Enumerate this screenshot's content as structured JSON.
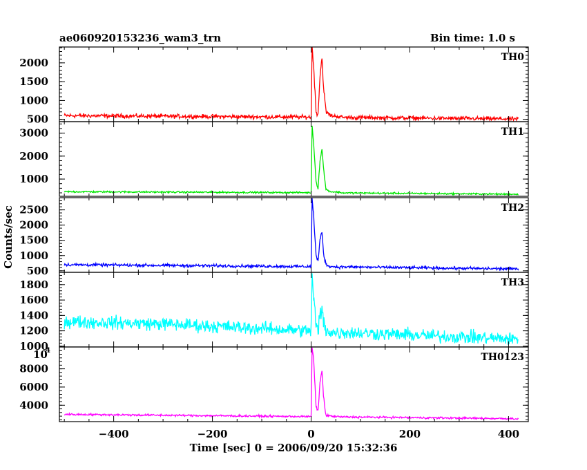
{
  "chart_data": {
    "type": "line",
    "title_left": "ae060920153236_wam3_trn",
    "title_right": "Bin time: 1.0 s",
    "xlabel": "Time [sec] 0 = 2006/09/20 15:32:36",
    "ylabel": "Counts/sec",
    "xlim": [
      -510,
      440
    ],
    "x_ticks": [
      -400,
      -200,
      0,
      200,
      400
    ],
    "x_tick_labels": [
      "−400",
      "−200",
      "0",
      "200",
      "400"
    ],
    "data_range": [
      -500,
      420
    ],
    "panels": [
      {
        "name": "TH0",
        "color": "#ff0000",
        "ylim": [
          440,
          2420
        ],
        "y_ticks": [
          500,
          1000,
          1500,
          2000
        ],
        "y_tick_labels": [
          "500",
          "1000",
          "1500",
          "2000"
        ],
        "baseline": [
          [
            -500,
            600
          ],
          [
            0,
            560
          ],
          [
            420,
            510
          ]
        ],
        "noise": 45,
        "features": [
          [
            0,
            530
          ],
          [
            2,
            2420
          ],
          [
            5,
            1950
          ],
          [
            10,
            700
          ],
          [
            14,
            650
          ],
          [
            18,
            1650
          ],
          [
            22,
            2150
          ],
          [
            25,
            1400
          ],
          [
            30,
            700
          ],
          [
            40,
            600
          ],
          [
            60,
            570
          ]
        ]
      },
      {
        "name": "TH1",
        "color": "#00e600",
        "ylim": [
          250,
          3500
        ],
        "y_ticks": [
          1000,
          2000,
          3000
        ],
        "y_tick_labels": [
          "1000",
          "2000",
          "3000"
        ],
        "baseline": [
          [
            -500,
            450
          ],
          [
            0,
            410
          ],
          [
            420,
            340
          ]
        ],
        "noise": 30,
        "features": [
          [
            0,
            420
          ],
          [
            2,
            3350
          ],
          [
            5,
            2600
          ],
          [
            10,
            900
          ],
          [
            14,
            600
          ],
          [
            18,
            1800
          ],
          [
            22,
            2300
          ],
          [
            25,
            1500
          ],
          [
            30,
            550
          ],
          [
            40,
            450
          ],
          [
            60,
            420
          ]
        ]
      },
      {
        "name": "TH2",
        "color": "#0000ff",
        "ylim": [
          450,
          2900
        ],
        "y_ticks": [
          500,
          1000,
          1500,
          2000,
          2500
        ],
        "y_tick_labels": [
          "500",
          "1000",
          "1500",
          "2000",
          "2500"
        ],
        "baseline": [
          [
            -500,
            700
          ],
          [
            0,
            640
          ],
          [
            420,
            560
          ]
        ],
        "noise": 40,
        "features": [
          [
            0,
            640
          ],
          [
            2,
            2850
          ],
          [
            5,
            2350
          ],
          [
            10,
            1000
          ],
          [
            14,
            800
          ],
          [
            18,
            1500
          ],
          [
            22,
            1800
          ],
          [
            25,
            1100
          ],
          [
            30,
            700
          ],
          [
            40,
            640
          ],
          [
            60,
            620
          ]
        ]
      },
      {
        "name": "TH3",
        "color": "#00ffff",
        "ylim": [
          990,
          1960
        ],
        "y_ticks": [
          1000,
          1200,
          1400,
          1600,
          1800
        ],
        "y_tick_labels": [
          "1000",
          "1200",
          "1400",
          "1600",
          "1800"
        ],
        "baseline": [
          [
            -500,
            1320
          ],
          [
            -300,
            1290
          ],
          [
            0,
            1200
          ],
          [
            30,
            1190
          ],
          [
            420,
            1090
          ]
        ],
        "noise": 70,
        "features": [
          [
            0,
            1230
          ],
          [
            2,
            1900
          ],
          [
            5,
            1650
          ],
          [
            10,
            1250
          ],
          [
            14,
            1200
          ],
          [
            18,
            1400
          ],
          [
            22,
            1480
          ],
          [
            25,
            1300
          ],
          [
            30,
            1220
          ],
          [
            40,
            1180
          ],
          [
            60,
            1170
          ]
        ]
      },
      {
        "name": "TH0123",
        "color": "#ff00ff",
        "ylim": [
          2200,
          10400
        ],
        "y_ticks": [
          4000,
          6000,
          8000
        ],
        "y_tick_labels": [
          "4000",
          "6000",
          "8000"
        ],
        "y_top_label": "10",
        "y_top_exp": "4",
        "baseline": [
          [
            -500,
            3000
          ],
          [
            0,
            2750
          ],
          [
            420,
            2520
          ]
        ],
        "noise": 90,
        "features": [
          [
            0,
            2800
          ],
          [
            2,
            10300
          ],
          [
            5,
            9200
          ],
          [
            10,
            3800
          ],
          [
            14,
            3400
          ],
          [
            18,
            6500
          ],
          [
            22,
            7800
          ],
          [
            25,
            5000
          ],
          [
            30,
            2900
          ],
          [
            40,
            2800
          ],
          [
            60,
            2720
          ]
        ]
      }
    ]
  }
}
